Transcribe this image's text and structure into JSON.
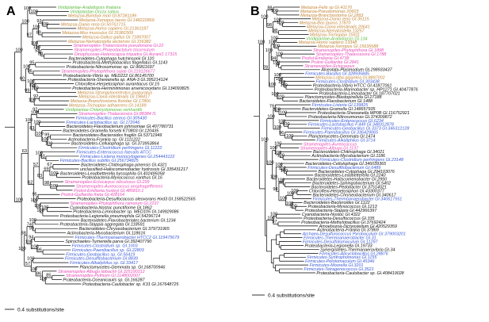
{
  "colors": {
    "Metazoa": "#c4873a",
    "Viridiplantae": "#5dbb3f",
    "Stramenopiles": "#e84ab7",
    "Protist": "#e84ab7",
    "Firmicutes": "#3b5bd9",
    "Archaea": "#3b5bd9",
    "Bacteria": "#111111"
  },
  "panels": [
    {
      "label": "A",
      "scale_label": "0.4 substitutions/site",
      "tips": [
        {
          "text": "Viridiplantae-Arabidopsis thaliana",
          "g": "Viridiplantae"
        },
        {
          "text": "Viridiplantae-Oryza sativa",
          "g": "Viridiplantae"
        },
        {
          "text": "Metazoa-Bombyx mori GI.87281189",
          "g": "Metazoa"
        },
        {
          "text": "Metazoa-Xenopus laevis GI.148222869",
          "g": "Metazoa"
        },
        {
          "text": "Metazoa-Danio rerio GI.50761715",
          "g": "Metazoa"
        },
        {
          "text": "Metazoa-Homo sapiens GI.21361187",
          "g": "Metazoa"
        },
        {
          "text": "Metazoa-Mus musculus GI.31981509",
          "g": "Metazoa"
        },
        {
          "text": "Metazoa-Gallus gallus GI.71897007",
          "g": "Metazoa"
        },
        {
          "text": "Metazoa-Nematostella vectensis GI.156382",
          "g": "Metazoa"
        },
        {
          "text": "Stramenopiles-Thalassiosira pseudonana GI.22",
          "g": "Stramenopiles"
        },
        {
          "text": "Stramenopiles-Phaeodactylum tricornutum",
          "g": "Stramenopiles"
        },
        {
          "text": "Dinophyceae-Heterocapsa triquetra GI.Aurant1 17315",
          "g": "Protist"
        },
        {
          "text": "Bacteroidetes-Cytophaga hutchinsonii GI.110",
          "g": "Bacteria"
        },
        {
          "text": "Proteobacteria-Methylobacillus flagellatus GI.1143",
          "g": "Bacteria"
        },
        {
          "text": "Proteobacteria-Nitrosomonas sp. GI.96811697",
          "g": "Bacteria"
        },
        {
          "text": "Stramenopiles-Phytophthora sojae GI.219126677",
          "g": "Stramenopiles"
        },
        {
          "text": "Proteobacteria-Vibrio sp. MED222 GI.86145700",
          "g": "Bacteria"
        },
        {
          "text": "Proteobacteria-Shewanella sp. ANA-3 GI.395214124",
          "g": "Bacteria"
        },
        {
          "text": "Chloroflexi-Herpetosiphon aurantiacus GI.15",
          "g": "Bacteria"
        },
        {
          "text": "Proteobacteria-Herminiimonas arsenicoxydans GI.134093825",
          "g": "Bacteria"
        },
        {
          "text": "Metazoa-Strongylocentrotus purpuratus",
          "g": "Metazoa"
        },
        {
          "text": "Metazoa-Ciona intestinalis GI.198417",
          "g": "Metazoa"
        },
        {
          "text": "Metazoa-Branchiostoma floridae GI.17866",
          "g": "Metazoa"
        },
        {
          "text": "Metazoa-Trichoplax adhaerens GI.14189",
          "g": "Metazoa"
        },
        {
          "text": "Viridiplantae-Chlamydomonas reinhardtii",
          "g": "Viridiplantae"
        },
        {
          "text": "Stramenopiles-Thalassiosira GI.88384 f1",
          "g": "Stramenopiles"
        },
        {
          "text": "Firmicutes-Bacillus cereus GI.305430",
          "g": "Firmicutes"
        },
        {
          "text": "Firmicutes-Lactobacillus sp. GI.172046",
          "g": "Firmicutes"
        },
        {
          "text": "Bacteroidetes-Flavobacterium johnsoniae GI.407780731",
          "g": "Bacteria"
        },
        {
          "text": "Bacteroidetes-Gramella forsetii KT0803 GI.120435",
          "g": "Bacteria"
        },
        {
          "text": "Bacteroidetes-Bacteroides fragilis GI.53711949",
          "g": "Bacteria"
        },
        {
          "text": "Actinobacteria-Frankia sp. GI.1111222",
          "g": "Bacteria"
        },
        {
          "text": "Bacteroidetes-Cellulophaga sp. GI.373953864",
          "g": "Bacteria"
        },
        {
          "text": "Firmicutes-Clostridium perfringens GI.11222",
          "g": "Firmicutes"
        },
        {
          "text": "Firmicutes-Enterococcus faecalis ATCC",
          "g": "Firmicutes"
        },
        {
          "text": "Firmicutes-Listeria monocytogenes GI.254443122",
          "g": "Firmicutes"
        },
        {
          "text": "Firmicutes-Bacillus subtilis GI.256734825",
          "g": "Firmicutes"
        },
        {
          "text": "Bacteroidetes-Chitinophaga pinensis GI.4321",
          "g": "Bacteria"
        },
        {
          "text": "unclassified-Haliscomenobacter hydrossis GI.335431217",
          "g": "Bacteria"
        },
        {
          "text": "Bacteroidetes-Leadbetterella byssophila GI.402495058",
          "g": "Bacteria"
        },
        {
          "text": "Proteobacteria-Myxococcus xanthus GI.16",
          "g": "Bacteria"
        },
        {
          "text": "Stramenopiles-Ectocarpus siliculosus GI.299",
          "g": "Stramenopiles"
        },
        {
          "text": "Stramenopiles-Aureococcus anophagefferens",
          "g": "Stramenopiles"
        },
        {
          "text": "Protist-Emiliania huxleyi GI.485810.1",
          "g": "Protist"
        },
        {
          "text": "Protist-Guillardia theta GI.428164",
          "g": "Protist"
        },
        {
          "text": "Proteobacteria-Desulfococcus oleovorans Hxd3 GI.158522565",
          "g": "Bacteria"
        },
        {
          "text": "Stramenopiles-Phytophthora ramorum GI.2237",
          "g": "Stramenopiles"
        },
        {
          "text": "Cyanobacteria-Nostoc punctiforme GI.1862",
          "g": "Bacteria"
        },
        {
          "text": "Proteobacteria-Limnobacter sp. MED105 GI.149929086",
          "g": "Bacteria"
        },
        {
          "text": "Proteobacteria-Legionella pneumophila GI.54296714",
          "g": "Bacteria"
        },
        {
          "text": "Bacteroidetes-Flavobacteriales bacterium GI.1234",
          "g": "Bacteria"
        },
        {
          "text": "Proteobacteria-Stappia aggregata GI.118591",
          "g": "Bacteria"
        },
        {
          "text": "Bacteroidetes-Chryseobacterium GI.379731965",
          "g": "Bacteria"
        },
        {
          "text": "Actinobacteria-Mycobacterium GI.118616",
          "g": "Bacteria"
        },
        {
          "text": "Firmicutes-Thermoanaerobacter HTCC2 GI.119475679",
          "g": "Firmicutes"
        },
        {
          "text": "Spirochaetes-Turneriella parva GI.392407790",
          "g": "Bacteria"
        },
        {
          "text": "Firmicutes-Clostridium sp. GI.1003",
          "g": "Firmicutes"
        },
        {
          "text": "Firmicutes-Paenibacillus sp. GI.22803",
          "g": "Firmicutes"
        },
        {
          "text": "Firmicutes-Geobacillus sp. GI.56419",
          "g": "Firmicutes"
        },
        {
          "text": "Firmicutes-Desulfitobacterium GI.8839",
          "g": "Firmicutes"
        },
        {
          "text": "Firmicutes-Alkaliphilus sp. GI.33417",
          "g": "Firmicutes"
        },
        {
          "text": "Planctomycetes-Gemmata sp. GI.168700946",
          "g": "Bacteria"
        },
        {
          "text": "Stramenopiles-Albugo laibachii GI.325190312",
          "g": "Stramenopiles"
        },
        {
          "text": "Stramenopiles-Pythium GI.1148002007",
          "g": "Stramenopiles"
        },
        {
          "text": "Proteobacteria-Oceanicaulis sp. GI.166287",
          "g": "Bacteria"
        },
        {
          "text": "Proteobacteria-Caulobacter sp. K31 GI.167648725",
          "g": "Bacteria"
        }
      ],
      "support": [
        "100",
        "100",
        "100",
        "93",
        "89",
        "100",
        "84",
        "53",
        "100",
        "100",
        "97",
        "100",
        "95",
        "96",
        "100",
        "100",
        "100",
        "100",
        "92",
        "100",
        "99",
        "60",
        "100",
        "92",
        "100",
        "100",
        "99",
        "100",
        "100",
        "100",
        "83",
        "100",
        "93",
        "100",
        "67",
        "100",
        "69",
        "100",
        "98",
        "83",
        "57",
        "95",
        "100",
        "100",
        "100",
        "100",
        "62",
        "63",
        "100",
        "99",
        "74",
        "94",
        "96",
        "100",
        "100",
        "88",
        "100",
        "85",
        "100",
        "86",
        "100",
        "57",
        "100",
        "100"
      ]
    },
    {
      "label": "B",
      "scale_label": "0.4 substitutions/site",
      "tips": [
        {
          "text": "Metazoa-Felis sp GI.41170",
          "g": "Metazoa"
        },
        {
          "text": "Metazoa-Pseudomonas 20603",
          "g": "Metazoa"
        },
        {
          "text": "Metazoa-Branchiostoma GI.1893",
          "g": "Metazoa"
        },
        {
          "text": "Metazoa-Danio rerio GI.35115",
          "g": "Metazoa"
        },
        {
          "text": "Metazoa-Bos taurus 17870",
          "g": "Metazoa"
        },
        {
          "text": "Metazoa-Ciona intestinalis 20641",
          "g": "Metazoa"
        },
        {
          "text": "Metazoa-Nematostella 13257",
          "g": "Metazoa"
        },
        {
          "text": "Metazoa-Trichoplax 15911",
          "g": "Metazoa"
        },
        {
          "text": "Viridiplantae-Arabidopsis GI.134",
          "g": "Viridiplantae"
        },
        {
          "text": "Metazoa-Homo sapiens 13348",
          "g": "Metazoa"
        },
        {
          "text": "Metazoa-Xenopus GI.15635688",
          "g": "Metazoa"
        },
        {
          "text": "Stramenopiles-Phytophthora GI.1898",
          "g": "Stramenopiles"
        },
        {
          "text": "Stramenopiles-Thalassiosira GI.1788",
          "g": "Stramenopiles"
        },
        {
          "text": "Protist-Emiliania GI.4738",
          "g": "Protist"
        },
        {
          "text": "Protist-Guillardia GI.2841",
          "g": "Protist"
        },
        {
          "text": "Stramenopiles-Ectocarpus",
          "g": "Stramenopiles"
        },
        {
          "text": "Alveolata-Plasmodium GI.298933437",
          "g": "Bacteria"
        },
        {
          "text": "Firmicutes-Bacillus GI.328935845",
          "g": "Firmicutes"
        },
        {
          "text": "Metazoa-Lottia gigantea GI.8897002",
          "g": "Metazoa"
        },
        {
          "text": "Firmicutes-Clostridium GI.303438",
          "g": "Firmicutes"
        },
        {
          "text": "Proteobacteria-Vibrio HTCC GI.41877061",
          "g": "Bacteria"
        },
        {
          "text": "Proteobacteria-Marinobacter sp. HP1271 GI.40477876",
          "g": "Bacteria"
        },
        {
          "text": "Proteobacteria-Limnobacter GI.187707021",
          "g": "Bacteria"
        },
        {
          "text": "Planctomycetes-Blastopirellula GI.27188",
          "g": "Bacteria"
        },
        {
          "text": "Bacteroidetes-Flavobacterium GI.1488",
          "g": "Bacteria"
        },
        {
          "text": "Firmicutes-Listeria GI.139825",
          "g": "Firmicutes"
        },
        {
          "text": "Bacteroidetes-Gramella GI.148657935",
          "g": "Bacteria"
        },
        {
          "text": "Proteobacteria-Shewanella MP0B GI.116752921",
          "g": "Bacteria"
        },
        {
          "text": "Proteobacteria-Nitrosomonas GI.374309872",
          "g": "Bacteria"
        },
        {
          "text": "Firmicutes-Enterococcus GI.6234",
          "g": "Firmicutes"
        },
        {
          "text": "Firmicutes-Lactobacillus F.449 GI.348312878",
          "g": "Firmicutes"
        },
        {
          "text": "Firmicutes-Geobacillus GI.3373 GI.346312128",
          "g": "Firmicutes"
        },
        {
          "text": "Firmicutes-Paenibacillus GI.336429065",
          "g": "Firmicutes"
        },
        {
          "text": "Planctomycetes-Gemmata GI.1474",
          "g": "Bacteria"
        },
        {
          "text": "Firmicutes-Alkaliphilus GI.3714",
          "g": "Firmicutes"
        },
        {
          "text": "Stramenopiles-Aureococcus",
          "g": "Stramenopiles"
        },
        {
          "text": "Stramenopiles-Albugo GI.1137",
          "g": "Stramenopiles"
        },
        {
          "text": "Bacteroidetes-Chitinophaga GI.34021",
          "g": "Bacteria"
        },
        {
          "text": "Actinobacteria-Mycobacterium GI.1186",
          "g": "Bacteria"
        },
        {
          "text": "Firmicutes-Clostridium perfringens GI.23148",
          "g": "Firmicutes"
        },
        {
          "text": "Bacteroidetes-Cellulophaga GI.346039365",
          "g": "Bacteria"
        },
        {
          "text": "Firmicutes-Desulfitobacterium GI.6489",
          "g": "Firmicutes"
        },
        {
          "text": "Bacteroidetes-Cytophaga GI.294103076",
          "g": "Bacteria"
        },
        {
          "text": "Bacteroidetes-Leadbetterella GI.2240",
          "g": "Bacteria"
        },
        {
          "text": "Bacteroidetes-Haliscomenobacter GI.2950",
          "g": "Bacteria"
        },
        {
          "text": "Bacteroidetes-Sphingobacterium GI.5402",
          "g": "Bacteria"
        },
        {
          "text": "Bacteroidetes-Pedobacter GI.37514021",
          "g": "Bacteria"
        },
        {
          "text": "Chloroflexi-Herpetosiphon GI.43300377",
          "g": "Bacteria"
        },
        {
          "text": "Bacteroidetes-Chryseobacterium GI.340617",
          "g": "Bacteria"
        },
        {
          "text": "Firmicutes-Thermoanaerobacter GI.340617551",
          "g": "Firmicutes"
        },
        {
          "text": "Bacteroidetes-Bacteroides GI.1122",
          "g": "Bacteria"
        },
        {
          "text": "Proteobacteria-Myxococcus GI.1213",
          "g": "Bacteria"
        },
        {
          "text": "Proteobacteria-Stappia GI.442966397",
          "g": "Bacteria"
        },
        {
          "text": "Cyanobacteria-Nostoc GI.4322",
          "g": "Bacteria"
        },
        {
          "text": "Proteobacteria-Desulfococcus GI.335",
          "g": "Bacteria"
        },
        {
          "text": "Proteobacteria-Methylobacillus GI.37692424",
          "g": "Bacteria"
        },
        {
          "text": "Amoebozoa-Dictyostelium GI.420529359",
          "g": "Bacteria"
        },
        {
          "text": "Actinobacteria-Frankia GI.37869",
          "g": "Bacteria"
        },
        {
          "text": "Archaea-Desulfurococcus Pyrobaculum GI.379003201",
          "g": "Archaea"
        },
        {
          "text": "Firmicutes-Thermoanaerobacter GI.31",
          "g": "Firmicutes"
        },
        {
          "text": "Firmicutes-Desulfotomaculum GI.11297",
          "g": "Firmicutes"
        },
        {
          "text": "Proteobacteria-Legionella GI.19733",
          "g": "Bacteria"
        },
        {
          "text": "Synergistetes-Thermanaerovibrio GI.34",
          "g": "Bacteria"
        },
        {
          "text": "Firmicutes-Alicyclobacillus GI.28876",
          "g": "Firmicutes"
        },
        {
          "text": "Firmicutes-Syntrophomonas GI.1155",
          "g": "Firmicutes"
        },
        {
          "text": "Firmicutes-Pelotomaculum GI.45346",
          "g": "Firmicutes"
        },
        {
          "text": "Firmicutes-Moorella GI.3201",
          "g": "Firmicutes"
        },
        {
          "text": "Firmicutes-Tetragenococcus GI.3521",
          "g": "Firmicutes"
        },
        {
          "text": "Proteobacteria-Caulobacter sp. GI.408419028",
          "g": "Bacteria"
        }
      ],
      "support": [
        "100",
        "88",
        "100",
        "100",
        "98",
        "98",
        "100",
        "100",
        "100",
        "100",
        "100",
        "97",
        "100",
        "94",
        "100",
        "100",
        "100",
        "100",
        "100",
        "100",
        "100",
        "100",
        "78",
        "100",
        "100",
        "100",
        "79",
        "100",
        "100",
        "100",
        "96",
        "100",
        "100",
        "100",
        "100",
        "100",
        "100",
        "100",
        "100",
        "100",
        "96",
        "100",
        "100",
        "100",
        "100",
        "100",
        "100",
        "94",
        "100",
        "100",
        "100",
        "100",
        "97",
        "100"
      ]
    }
  ]
}
